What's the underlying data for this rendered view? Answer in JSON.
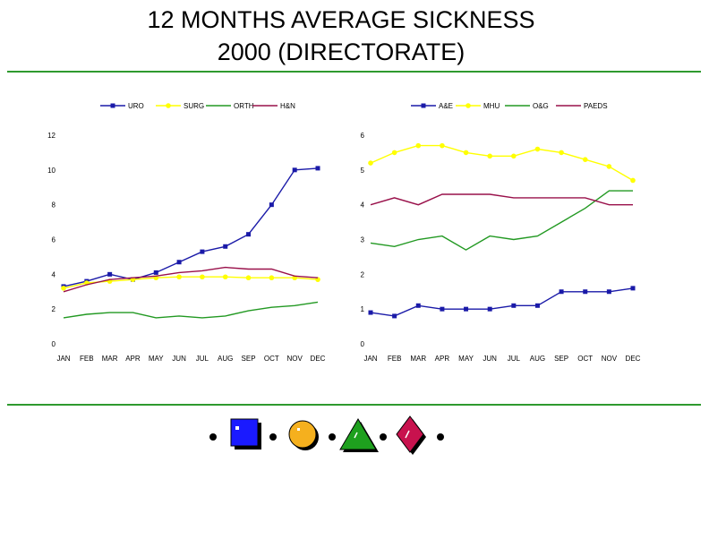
{
  "title": {
    "line1": "12 MONTHS AVERAGE SICKNESS",
    "line2": "2000 (DIRECTORATE)"
  },
  "colors": {
    "rule": "#2e9a2e",
    "blue": "#1a1aa8",
    "yellow": "#ffff00",
    "green": "#229922",
    "maroon": "#99104a"
  },
  "decor": {
    "shapes": [
      "blue-square",
      "orange-circle",
      "green-triangle",
      "red-diamond"
    ]
  },
  "chart_data": [
    {
      "type": "line",
      "title": "",
      "xlabel": "",
      "ylabel": "",
      "ylim": [
        0,
        12
      ],
      "yticks": [
        "0",
        "2",
        "4",
        "6",
        "8",
        "10",
        "12"
      ],
      "categories": [
        "JAN",
        "FEB",
        "MAR",
        "APR",
        "MAY",
        "JUN",
        "JUL",
        "AUG",
        "SEP",
        "OCT",
        "NOV",
        "DEC"
      ],
      "legend_position": "top",
      "series": [
        {
          "name": "URO",
          "color": "#1a1aa8",
          "marker": "square",
          "values": [
            3.3,
            3.6,
            4.0,
            3.7,
            4.1,
            4.7,
            5.3,
            5.6,
            6.3,
            8.0,
            10.0,
            10.1
          ]
        },
        {
          "name": "SURG",
          "color": "#ffff00",
          "marker": "circle",
          "values": [
            3.2,
            3.5,
            3.6,
            3.7,
            3.8,
            3.85,
            3.85,
            3.85,
            3.8,
            3.8,
            3.8,
            3.7
          ]
        },
        {
          "name": "ORTH",
          "color": "#229922",
          "marker": "none",
          "values": [
            1.5,
            1.7,
            1.8,
            1.8,
            1.5,
            1.6,
            1.5,
            1.6,
            1.9,
            2.1,
            2.2,
            2.4
          ]
        },
        {
          "name": "H&N",
          "color": "#99104a",
          "marker": "none",
          "values": [
            3.0,
            3.4,
            3.7,
            3.8,
            3.9,
            4.1,
            4.2,
            4.4,
            4.3,
            4.3,
            3.9,
            3.8
          ]
        }
      ]
    },
    {
      "type": "line",
      "title": "",
      "xlabel": "",
      "ylabel": "",
      "ylim": [
        0,
        6
      ],
      "yticks": [
        "0",
        "1",
        "2",
        "3",
        "4",
        "5",
        "6"
      ],
      "categories": [
        "JAN",
        "FEB",
        "MAR",
        "APR",
        "MAY",
        "JUN",
        "JUL",
        "AUG",
        "SEP",
        "OCT",
        "NOV",
        "DEC"
      ],
      "legend_position": "top",
      "series": [
        {
          "name": "A&E",
          "color": "#1a1aa8",
          "marker": "square",
          "values": [
            0.9,
            0.8,
            1.1,
            1.0,
            1.0,
            1.0,
            1.1,
            1.1,
            1.5,
            1.5,
            1.5,
            1.6
          ]
        },
        {
          "name": "MHU",
          "color": "#ffff00",
          "marker": "circle",
          "values": [
            5.2,
            5.5,
            5.7,
            5.7,
            5.5,
            5.4,
            5.4,
            5.6,
            5.5,
            5.3,
            5.1,
            4.7
          ]
        },
        {
          "name": "O&G",
          "color": "#229922",
          "marker": "none",
          "values": [
            2.9,
            2.8,
            3.0,
            3.1,
            2.7,
            3.1,
            3.0,
            3.1,
            3.5,
            3.9,
            4.4,
            4.4
          ]
        },
        {
          "name": "PAEDS",
          "color": "#99104a",
          "marker": "none",
          "values": [
            4.0,
            4.2,
            4.0,
            4.3,
            4.3,
            4.3,
            4.2,
            4.2,
            4.2,
            4.2,
            4.0,
            4.0
          ]
        }
      ]
    }
  ]
}
